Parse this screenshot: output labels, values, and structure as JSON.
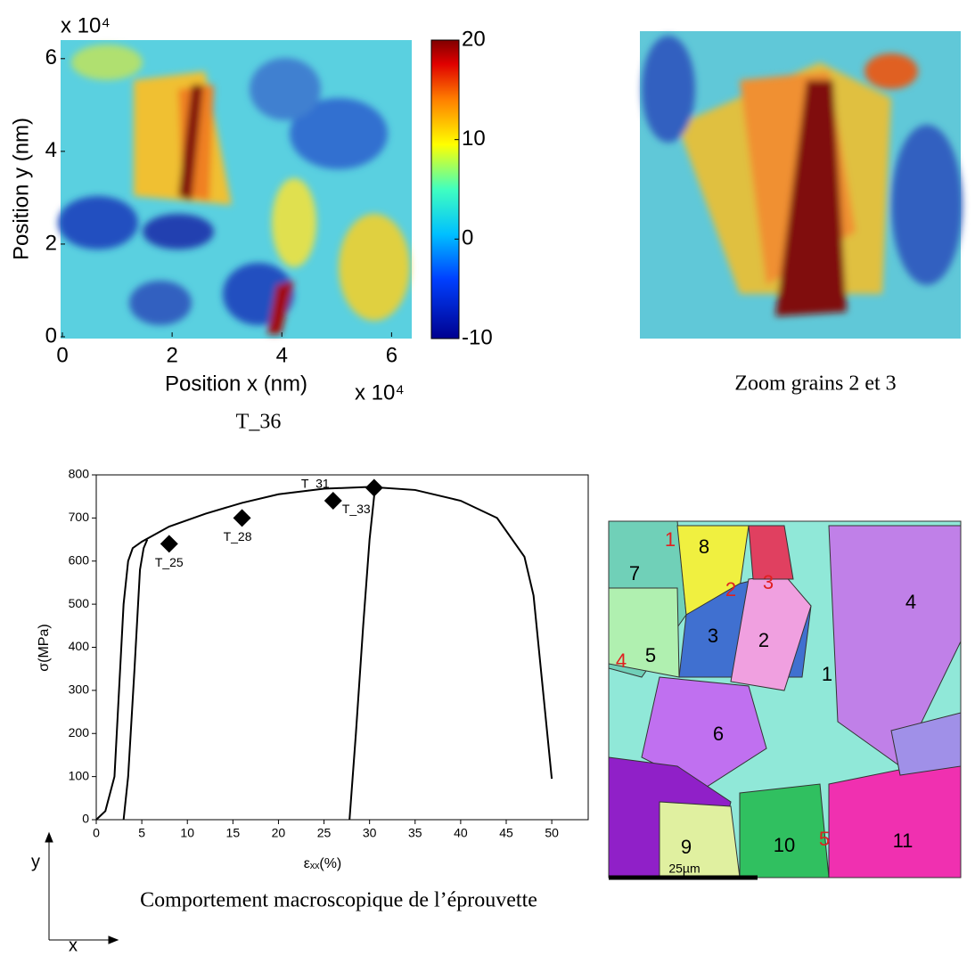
{
  "chart_data": [
    {
      "type": "heatmap",
      "title": "T_36",
      "xlabel": "Position x (nm)",
      "ylabel": "Position y (nm)",
      "x_multiplier": "x 10⁴",
      "y_multiplier": "x 10⁴",
      "xlim": [
        0,
        6.4
      ],
      "ylim": [
        0,
        6.4
      ],
      "xticks": [
        0,
        2,
        4,
        6
      ],
      "yticks": [
        0,
        2,
        4,
        6
      ],
      "colorbar": {
        "lim": [
          -10,
          20
        ],
        "ticks": [
          -10,
          0,
          10,
          20
        ]
      }
    },
    {
      "type": "line",
      "xlabel": "εₓₓ(%)",
      "ylabel": "σ(MPa)",
      "xlim": [
        0,
        54
      ],
      "ylim": [
        0,
        800
      ],
      "xticks": [
        0,
        5,
        10,
        15,
        20,
        25,
        30,
        35,
        40,
        45,
        50
      ],
      "yticks": [
        0,
        100,
        200,
        300,
        400,
        500,
        600,
        700,
        800
      ],
      "caption": "Comportement macroscopique de l’éprouvette",
      "series": [
        {
          "color": "#000000",
          "x": [
            0,
            1,
            2,
            2.5,
            3,
            3.5,
            4,
            5,
            8,
            12,
            16,
            20,
            25,
            30,
            35,
            40,
            44,
            47,
            48,
            50
          ],
          "values": [
            0,
            20,
            100,
            300,
            500,
            600,
            630,
            645,
            680,
            710,
            735,
            755,
            768,
            772,
            765,
            740,
            700,
            610,
            520,
            95
          ]
        },
        {
          "color": "#000000",
          "x": [
            3,
            3.5,
            4.2,
            4.8,
            5.2,
            5.6
          ],
          "values": [
            0,
            100,
            350,
            580,
            630,
            650
          ]
        },
        {
          "color": "#000000",
          "x": [
            27.8,
            28.5,
            29.3,
            30,
            30.6
          ],
          "values": [
            0,
            200,
            450,
            650,
            770
          ]
        }
      ],
      "markers": {
        "x": [
          8,
          16,
          26,
          30.5
        ],
        "values": [
          640,
          700,
          740,
          770
        ],
        "labels": [
          "T_25",
          "T_28",
          "T_31",
          "T_33"
        ]
      }
    }
  ],
  "zoom_caption": "Zoom grains 2 et 3",
  "axes_labels": {
    "y": "y",
    "x": "x"
  },
  "ebsd": {
    "scale": "25µm",
    "grains": [
      {
        "label": "1",
        "color": "#e02020"
      },
      {
        "label": "8",
        "color": "#000000"
      },
      {
        "label": "2",
        "color": "#e02020"
      },
      {
        "label": "3",
        "color": "#e02020"
      },
      {
        "label": "7",
        "color": "#000000"
      },
      {
        "label": "3",
        "color": "#000000"
      },
      {
        "label": "2",
        "color": "#000000"
      },
      {
        "label": "4",
        "color": "#000000"
      },
      {
        "label": "5",
        "color": "#000000"
      },
      {
        "label": "4",
        "color": "#e02020"
      },
      {
        "label": "1",
        "color": "#000000"
      },
      {
        "label": "6",
        "color": "#000000"
      },
      {
        "label": "9",
        "color": "#000000"
      },
      {
        "label": "10",
        "color": "#000000"
      },
      {
        "label": "5",
        "color": "#e02020"
      },
      {
        "label": "11",
        "color": "#000000"
      }
    ]
  }
}
